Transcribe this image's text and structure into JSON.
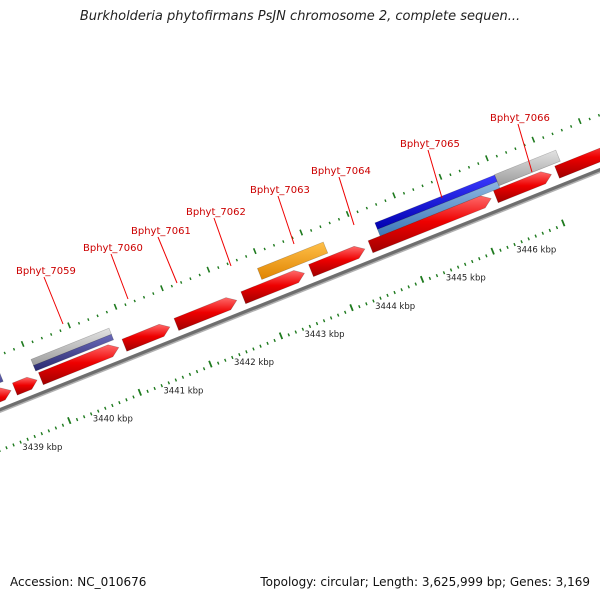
{
  "title": "Burkholderia phytofirmans PsJN chromosome 2, complete sequen...",
  "footer": {
    "accession": "Accession: NC_010676",
    "topology": "Topology: circular; Length: 3,625,999 bp; Genes: 3,169"
  },
  "gene_labels": [
    "Bphyt_7059",
    "Bphyt_7060",
    "Bphyt_7061",
    "Bphyt_7062",
    "Bphyt_7063",
    "Bphyt_7064",
    "Bphyt_7065",
    "Bphyt_7066"
  ],
  "kbp_labels": [
    "3439 kbp",
    "3440 kbp",
    "3441 kbp",
    "3442 kbp",
    "3443 kbp",
    "3444 kbp",
    "3445 kbp",
    "3446 kbp"
  ],
  "colors": {
    "gene_cds": "#ee0000",
    "gene_orange": "#f29400",
    "gene_blue": "#0000dd",
    "gene_light_blue": "#5b8fc9",
    "gene_gray": "#bbbbbb",
    "gene_navy": "#3b3b8c",
    "backbone": "#888888",
    "ticks": "#1e7a1e",
    "label": "#cc0000"
  }
}
